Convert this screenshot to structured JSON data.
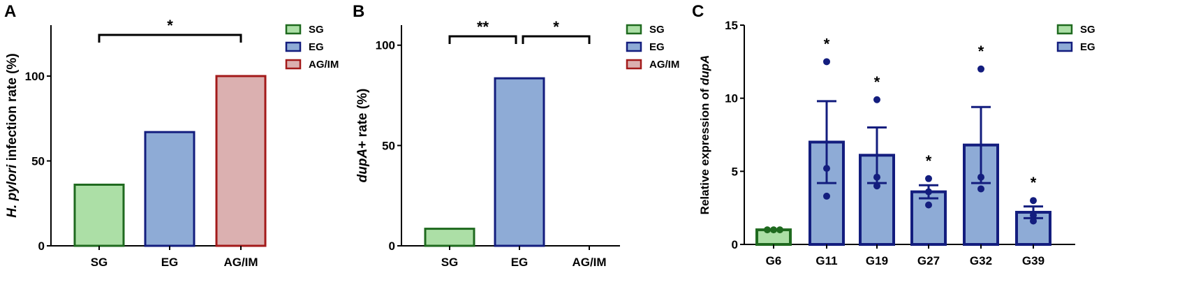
{
  "chart_data": [
    {
      "type": "bar",
      "panel_label": "A",
      "ylabel_italic": "H. pylori",
      "ylabel_rest": " infection rate (%)",
      "categories": [
        "SG",
        "EG",
        "AG/IM"
      ],
      "values": [
        36,
        67,
        100
      ],
      "colors": [
        {
          "fill": "#acdfa6",
          "stroke": "#1f6a1f"
        },
        {
          "fill": "#8eabd6",
          "stroke": "#131d7e"
        },
        {
          "fill": "#dbb0b0",
          "stroke": "#a31a1a"
        }
      ],
      "ylim": [
        0,
        130
      ],
      "yticks": [
        0,
        50,
        100
      ],
      "legend": [
        "SG",
        "EG",
        "AG/IM"
      ],
      "legend_position": "top-right",
      "significance": [
        {
          "from": "SG",
          "to": "AG/IM",
          "label": "*"
        }
      ]
    },
    {
      "type": "bar",
      "panel_label": "B",
      "ylabel_italic": "dupA",
      "ylabel_rest": "+ rate (%)",
      "categories": [
        "SG",
        "EG",
        "AG/IM"
      ],
      "values": [
        8.5,
        83.5,
        0
      ],
      "colors": [
        {
          "fill": "#acdfa6",
          "stroke": "#1f6a1f"
        },
        {
          "fill": "#8eabd6",
          "stroke": "#131d7e"
        },
        {
          "fill": "#dbb0b0",
          "stroke": "#a31a1a"
        }
      ],
      "ylim": [
        0,
        110
      ],
      "yticks": [
        0,
        50,
        100
      ],
      "legend": [
        "SG",
        "EG",
        "AG/IM"
      ],
      "legend_position": "top-right",
      "significance": [
        {
          "from": "SG",
          "to": "EG",
          "label": "**"
        },
        {
          "from": "EG",
          "to": "AG/IM",
          "label": "*"
        }
      ]
    },
    {
      "type": "bar",
      "panel_label": "C",
      "ylabel_rest": "Relative expression of ",
      "ylabel_italic": "dupA",
      "categories": [
        "G6",
        "G11",
        "G19",
        "G27",
        "G32",
        "G39"
      ],
      "values": [
        1.0,
        7.0,
        6.1,
        3.6,
        6.8,
        2.2
      ],
      "errors": [
        0,
        2.8,
        1.9,
        0.45,
        2.6,
        0.4
      ],
      "points": [
        [
          1.0,
          1.0,
          1.0
        ],
        [
          12.5,
          5.2,
          3.3
        ],
        [
          9.9,
          4.6,
          4.0
        ],
        [
          4.5,
          3.6,
          2.7
        ],
        [
          12.0,
          4.6,
          3.8
        ],
        [
          3.0,
          2.0,
          1.6
        ]
      ],
      "significance_labels": [
        "",
        "*",
        "*",
        "*",
        "*",
        "*"
      ],
      "colors": [
        {
          "fill": "#acdfa6",
          "stroke": "#1f6a1f"
        },
        {
          "fill": "#8eabd6",
          "stroke": "#131d7e"
        }
      ],
      "ylim": [
        0,
        15
      ],
      "yticks": [
        0,
        5,
        10,
        15
      ],
      "legend": [
        "SG",
        "EG"
      ],
      "legend_position": "top-right"
    }
  ]
}
